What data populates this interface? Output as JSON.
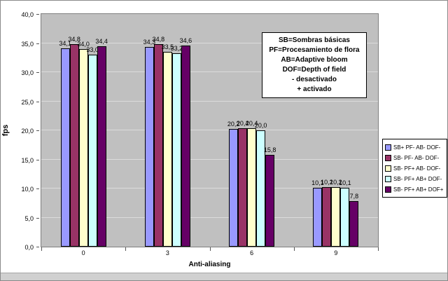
{
  "chart_data": {
    "type": "bar",
    "title": "",
    "xlabel": "Anti-aliasing",
    "ylabel": "fps",
    "ylim": [
      0,
      40
    ],
    "ytick_step": 5,
    "ytick_labels": [
      "0,0",
      "5,0",
      "10,0",
      "15,0",
      "20,0",
      "25,0",
      "30,0",
      "35,0",
      "40,0"
    ],
    "categories": [
      "0",
      "3",
      "6",
      "9"
    ],
    "series": [
      {
        "name": "SB+ PF- AB- DOF-",
        "color": "#9999FF",
        "values": [
          34.1,
          34.3,
          20.2,
          10.1
        ],
        "labels": [
          "34,1",
          "34,3",
          "20,2",
          "10,1"
        ]
      },
      {
        "name": "SB- PF- AB- DOF-",
        "color": "#993366",
        "values": [
          34.8,
          34.8,
          20.4,
          10.2
        ],
        "labels": [
          "34,8",
          "34,8",
          "20,4",
          "10,2"
        ]
      },
      {
        "name": "SB- PF+ AB- DOF-",
        "color": "#FFFFCC",
        "values": [
          34.0,
          33.5,
          20.4,
          10.2
        ],
        "labels": [
          "34,0",
          "33,5",
          "20,4",
          "10,2"
        ]
      },
      {
        "name": "SB- PF+ AB+ DOF-",
        "color": "#CCFFFF",
        "values": [
          33.0,
          33.2,
          20.0,
          10.1
        ],
        "labels": [
          "33,0",
          "33,2",
          "20,0",
          "10,1"
        ]
      },
      {
        "name": "SB- PF+ AB+ DOF+",
        "color": "#660066",
        "values": [
          34.4,
          34.6,
          15.8,
          7.8
        ],
        "labels": [
          "34,4",
          "34,6",
          "15,8",
          "7,8"
        ]
      }
    ],
    "legend_position": "right",
    "grid": true,
    "plot_bg": "#C0C0C0",
    "annotation": [
      "SB=Sombras básicas",
      "PF=Procesamiento de flora",
      "AB=Adaptive bloom",
      "DOF=Depth of field",
      "- desactivado",
      "+ activado"
    ]
  }
}
